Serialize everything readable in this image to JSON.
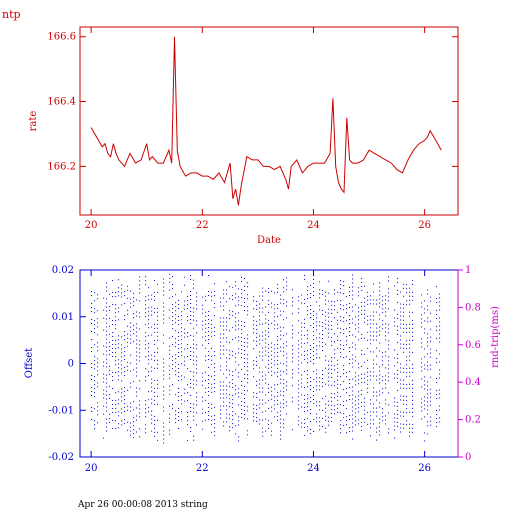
{
  "page": {
    "corner_label": "ntp",
    "footer_text": "Apr 26 00:00:08 2013 string"
  },
  "chart_data": [
    {
      "type": "line",
      "xlabel": "Date",
      "ylabel": "rate",
      "xlim": [
        19.8,
        26.6
      ],
      "ylim": [
        166.05,
        166.63
      ],
      "xticks": [
        20,
        22,
        24,
        26
      ],
      "yticks": [
        166.2,
        166.4,
        166.6
      ],
      "ytick_labels": [
        "166.2",
        "166.4",
        "166.6"
      ],
      "color": "#cc0000",
      "series": [
        {
          "x": [
            20.0,
            20.1,
            20.2,
            20.25,
            20.3,
            20.35,
            20.4,
            20.45,
            20.5,
            20.6,
            20.7,
            20.8,
            20.9,
            21.0,
            21.05,
            21.1,
            21.2,
            21.3,
            21.4,
            21.45,
            21.5,
            21.55,
            21.6,
            21.7,
            21.8,
            21.9,
            22.0,
            22.1,
            22.2,
            22.3,
            22.4,
            22.5,
            22.55,
            22.6,
            22.65,
            22.7,
            22.8,
            22.9,
            23.0,
            23.1,
            23.2,
            23.3,
            23.4,
            23.5,
            23.55,
            23.6,
            23.7,
            23.8,
            23.9,
            24.0,
            24.1,
            24.2,
            24.3,
            24.35,
            24.4,
            24.45,
            24.5,
            24.55,
            24.6,
            24.65,
            24.7,
            24.8,
            24.9,
            25.0,
            25.1,
            25.2,
            25.3,
            25.4,
            25.5,
            25.6,
            25.7,
            25.8,
            25.9,
            26.0,
            26.05,
            26.1,
            26.2,
            26.3
          ],
          "y": [
            166.32,
            166.29,
            166.26,
            166.27,
            166.24,
            166.23,
            166.27,
            166.24,
            166.22,
            166.2,
            166.24,
            166.21,
            166.22,
            166.27,
            166.22,
            166.23,
            166.21,
            166.21,
            166.25,
            166.21,
            166.6,
            166.25,
            166.2,
            166.17,
            166.18,
            166.18,
            166.17,
            166.17,
            166.16,
            166.18,
            166.15,
            166.21,
            166.1,
            166.13,
            166.08,
            166.14,
            166.23,
            166.22,
            166.22,
            166.2,
            166.2,
            166.19,
            166.2,
            166.16,
            166.13,
            166.2,
            166.22,
            166.18,
            166.2,
            166.21,
            166.21,
            166.21,
            166.24,
            166.41,
            166.2,
            166.15,
            166.13,
            166.12,
            166.35,
            166.22,
            166.21,
            166.21,
            166.22,
            166.25,
            166.24,
            166.23,
            166.22,
            166.21,
            166.19,
            166.18,
            166.22,
            166.25,
            166.27,
            166.28,
            166.29,
            166.31,
            166.28,
            166.25
          ]
        }
      ]
    },
    {
      "type": "scatter",
      "xlabel": "",
      "ylabel": "Offset",
      "y2label": "rnd-trip(ms)",
      "xlim": [
        19.8,
        26.6
      ],
      "ylim": [
        -0.02,
        0.02
      ],
      "y2lim": [
        0,
        1
      ],
      "xticks": [
        20,
        22,
        24,
        26
      ],
      "yticks": [
        -0.02,
        -0.01,
        0,
        0.01,
        0.02
      ],
      "ytick_labels": [
        "-0.02",
        "-0.01",
        "0",
        "0.01",
        "0.02"
      ],
      "y2ticks": [
        0,
        0.2,
        0.4,
        0.6,
        0.8,
        1
      ],
      "y2tick_labels": [
        "0",
        "0.2",
        "0.4",
        "0.6",
        "0.8",
        "1"
      ],
      "offset_color": "#0000cc",
      "rtt_color": "#cc00cc",
      "series": [
        {
          "name": "",
          "x_start": 20.0,
          "x_end": 26.3,
          "y_range": [
            -0.017,
            0.02
          ]
        }
      ]
    }
  ]
}
